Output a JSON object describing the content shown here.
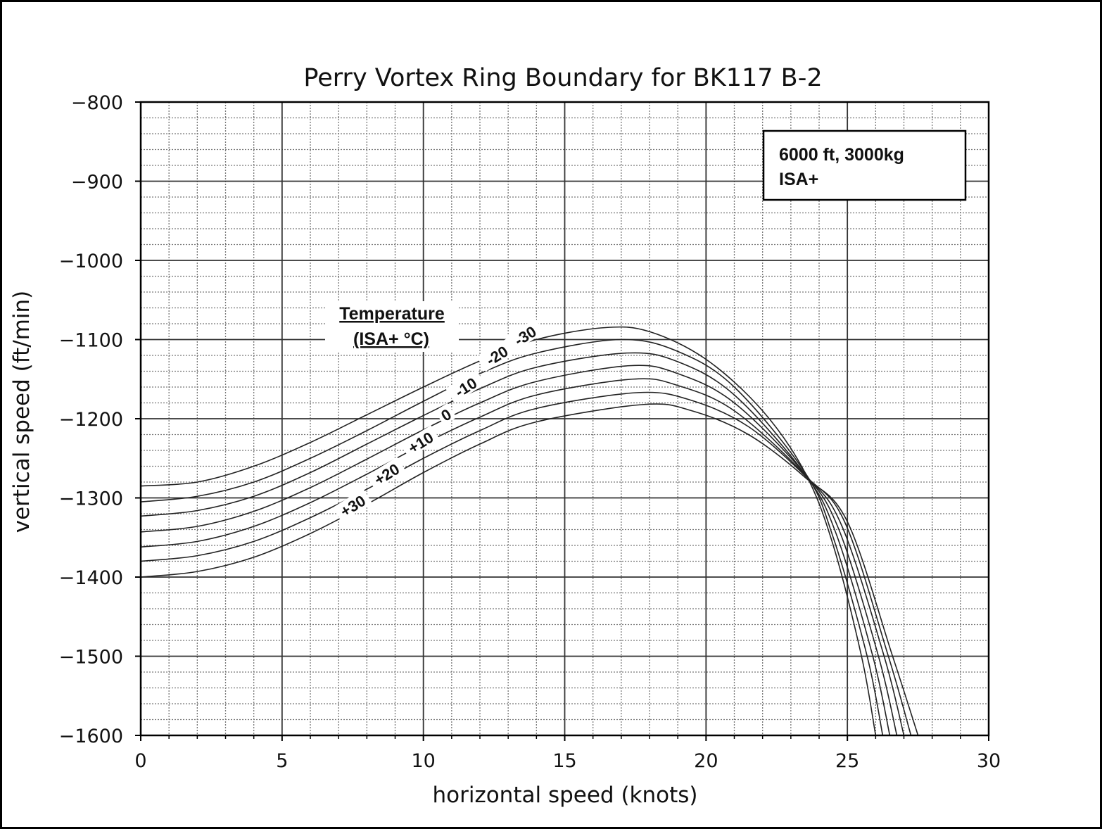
{
  "chart_data": {
    "type": "line",
    "title": "Perry Vortex Ring Boundary for BK117 B-2",
    "xlabel": "horizontal speed (knots)",
    "ylabel": "vertical speed (ft/min)",
    "xlim": [
      0,
      30
    ],
    "ylim": [
      -1600,
      -800
    ],
    "xticks": [
      0,
      5,
      10,
      15,
      20,
      25,
      30
    ],
    "yticks": [
      -800,
      -900,
      -1000,
      -1100,
      -1200,
      -1300,
      -1400,
      -1500,
      -1600
    ],
    "xtick_labels": [
      "0",
      "5",
      "10",
      "15",
      "20",
      "25",
      "30"
    ],
    "ytick_labels": [
      "−800",
      "−900",
      "−1000",
      "−1100",
      "−1200",
      "−1300",
      "−1400",
      "−1500",
      "−1600"
    ],
    "grid": {
      "major": true,
      "minor": true,
      "minor_x_step": 1,
      "minor_y_step": 20
    },
    "annotation_box": {
      "line1": "6000 ft, 3000kg",
      "line2": "ISA+"
    },
    "legend_title": {
      "line1": "Temperature",
      "line2": "(ISA+ °C)"
    },
    "series": [
      {
        "name": "-30",
        "label": "-30",
        "points": [
          [
            0,
            -1285
          ],
          [
            2,
            -1280
          ],
          [
            4,
            -1260
          ],
          [
            6,
            -1230
          ],
          [
            8,
            -1195
          ],
          [
            10,
            -1160
          ],
          [
            12,
            -1127
          ],
          [
            14,
            -1100
          ],
          [
            16.4,
            -1085
          ],
          [
            18,
            -1090
          ],
          [
            20,
            -1125
          ],
          [
            22,
            -1190
          ],
          [
            23.5,
            -1268
          ],
          [
            24.5,
            -1360
          ],
          [
            25.5,
            -1500
          ],
          [
            26.0,
            -1600
          ]
        ]
      },
      {
        "name": "-20",
        "label": "-20",
        "points": [
          [
            0,
            -1305
          ],
          [
            2,
            -1298
          ],
          [
            4,
            -1280
          ],
          [
            6,
            -1250
          ],
          [
            8,
            -1215
          ],
          [
            10,
            -1178
          ],
          [
            12,
            -1143
          ],
          [
            14,
            -1117
          ],
          [
            17,
            -1100
          ],
          [
            19,
            -1115
          ],
          [
            21,
            -1160
          ],
          [
            23.5,
            -1268
          ],
          [
            24.5,
            -1350
          ],
          [
            25.7,
            -1500
          ],
          [
            26.25,
            -1600
          ]
        ]
      },
      {
        "name": "-10",
        "label": "-10",
        "points": [
          [
            0,
            -1323
          ],
          [
            2,
            -1316
          ],
          [
            4,
            -1298
          ],
          [
            6,
            -1268
          ],
          [
            8,
            -1232
          ],
          [
            10,
            -1196
          ],
          [
            12,
            -1162
          ],
          [
            14,
            -1135
          ],
          [
            17.2,
            -1117
          ],
          [
            19,
            -1128
          ],
          [
            21,
            -1170
          ],
          [
            23.5,
            -1270
          ],
          [
            24.6,
            -1345
          ],
          [
            25.9,
            -1500
          ],
          [
            26.5,
            -1600
          ]
        ]
      },
      {
        "name": "0",
        "label": "0",
        "points": [
          [
            0,
            -1343
          ],
          [
            2,
            -1336
          ],
          [
            4,
            -1317
          ],
          [
            6,
            -1287
          ],
          [
            8,
            -1251
          ],
          [
            10,
            -1214
          ],
          [
            12,
            -1180
          ],
          [
            14,
            -1153
          ],
          [
            17.3,
            -1133
          ],
          [
            19,
            -1143
          ],
          [
            21,
            -1180
          ],
          [
            23.5,
            -1270
          ],
          [
            24.7,
            -1340
          ],
          [
            26.1,
            -1500
          ],
          [
            26.75,
            -1600
          ]
        ]
      },
      {
        "name": "+10",
        "label": "+10",
        "points": [
          [
            0,
            -1362
          ],
          [
            2,
            -1355
          ],
          [
            4,
            -1336
          ],
          [
            6,
            -1306
          ],
          [
            8,
            -1270
          ],
          [
            10,
            -1232
          ],
          [
            12,
            -1198
          ],
          [
            14,
            -1170
          ],
          [
            17.4,
            -1150
          ],
          [
            19,
            -1158
          ],
          [
            21,
            -1190
          ],
          [
            23.5,
            -1271
          ],
          [
            24.8,
            -1335
          ],
          [
            26.3,
            -1500
          ],
          [
            27.0,
            -1600
          ]
        ]
      },
      {
        "name": "+20",
        "label": "+20",
        "points": [
          [
            0,
            -1380
          ],
          [
            2,
            -1373
          ],
          [
            4,
            -1355
          ],
          [
            6,
            -1325
          ],
          [
            8,
            -1289
          ],
          [
            10,
            -1250
          ],
          [
            12,
            -1215
          ],
          [
            14,
            -1187
          ],
          [
            17.6,
            -1167
          ],
          [
            19.5,
            -1177
          ],
          [
            21.5,
            -1210
          ],
          [
            23.5,
            -1272
          ],
          [
            24.9,
            -1330
          ],
          [
            26.45,
            -1500
          ],
          [
            27.25,
            -1600
          ]
        ]
      },
      {
        "name": "+30",
        "label": "+30",
        "points": [
          [
            0,
            -1400
          ],
          [
            2,
            -1393
          ],
          [
            4,
            -1375
          ],
          [
            6,
            -1345
          ],
          [
            8,
            -1308
          ],
          [
            10,
            -1268
          ],
          [
            12,
            -1232
          ],
          [
            14,
            -1204
          ],
          [
            17.8,
            -1182
          ],
          [
            19.5,
            -1190
          ],
          [
            21.5,
            -1220
          ],
          [
            23.5,
            -1274
          ],
          [
            25,
            -1330
          ],
          [
            26.6,
            -1500
          ],
          [
            27.5,
            -1600
          ]
        ]
      }
    ],
    "curve_label_positions": [
      [
        13.6,
        -1095
      ],
      [
        12.6,
        -1120
      ],
      [
        11.5,
        -1160
      ],
      [
        10.8,
        -1195
      ],
      [
        9.9,
        -1230
      ],
      [
        8.7,
        -1270
      ],
      [
        7.5,
        -1310
      ]
    ]
  }
}
